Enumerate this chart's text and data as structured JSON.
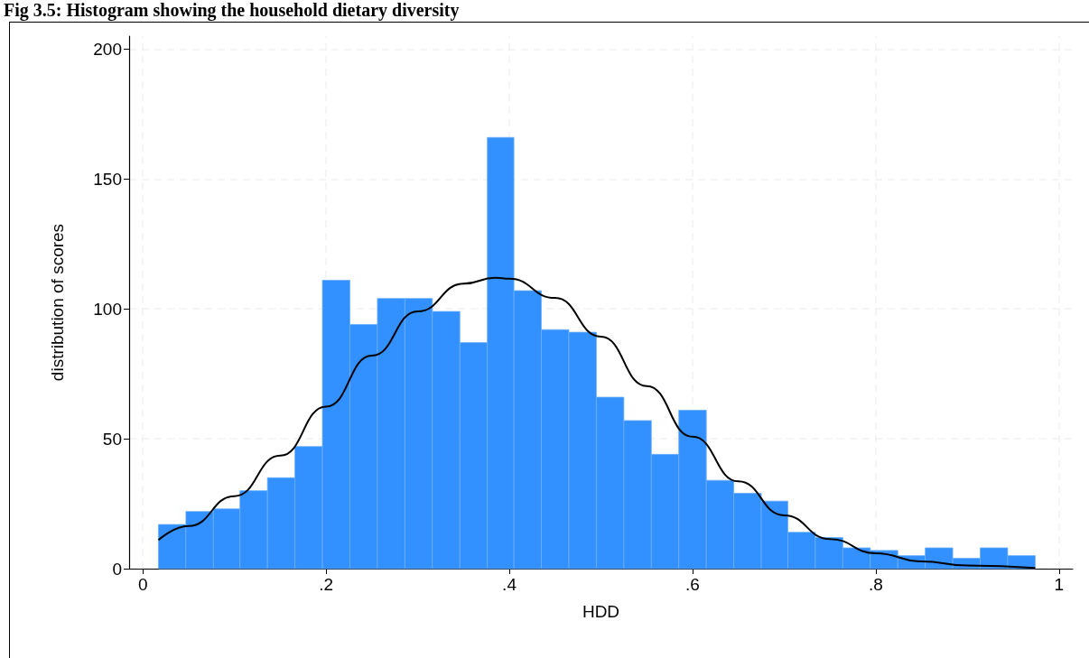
{
  "chart_data": {
    "type": "histogram",
    "title": "Fig 3.5: Histogram showing the household dietary diversity",
    "xlabel": "HDD",
    "ylabel": "distribution of scores",
    "bins": [
      0.017,
      0.047,
      0.077,
      0.106,
      0.136,
      0.166,
      0.196,
      0.226,
      0.256,
      0.286,
      0.316,
      0.346,
      0.376,
      0.405,
      0.435,
      0.465,
      0.495,
      0.525,
      0.555,
      0.585,
      0.615,
      0.645,
      0.675,
      0.704,
      0.734,
      0.764,
      0.794,
      0.824,
      0.854,
      0.884,
      0.914,
      0.944,
      0.974
    ],
    "values": [
      17,
      22,
      23,
      30,
      35,
      47,
      111,
      94,
      104,
      104,
      99,
      87,
      166,
      107,
      92,
      91,
      66,
      57,
      44,
      61,
      34,
      29,
      26,
      14,
      12,
      8,
      7,
      5,
      8,
      4,
      8,
      5
    ],
    "color": "#3390ff",
    "series": [
      {
        "type": "line",
        "color": "#000000",
        "x": [
          0.017,
          0.05,
          0.1,
          0.15,
          0.2,
          0.25,
          0.3,
          0.35,
          0.385,
          0.4,
          0.45,
          0.5,
          0.55,
          0.6,
          0.65,
          0.7,
          0.75,
          0.8,
          0.85,
          0.9,
          0.974
        ],
        "values": [
          11,
          16.4,
          27.9,
          43.5,
          62.4,
          82,
          99,
          109.7,
          112,
          111.6,
          104.2,
          89.3,
          70.3,
          50.8,
          33.6,
          20.5,
          11.4,
          5.9,
          2.8,
          1.2,
          0.3
        ]
      }
    ],
    "marker": "none",
    "line_style": "solid",
    "xlim": [
      -0.015,
      1.015
    ],
    "xticks": [
      0,
      {
        "value": 0.2,
        "label": ".2"
      },
      {
        "value": 0.4,
        "label": ".4"
      },
      {
        "value": 0.6,
        "label": ".6"
      },
      {
        "value": 0.8,
        "label": ".8"
      },
      1
    ],
    "ylim": [
      0,
      205
    ],
    "yticks": [
      0,
      50,
      100,
      150,
      200
    ],
    "grid": true
  }
}
